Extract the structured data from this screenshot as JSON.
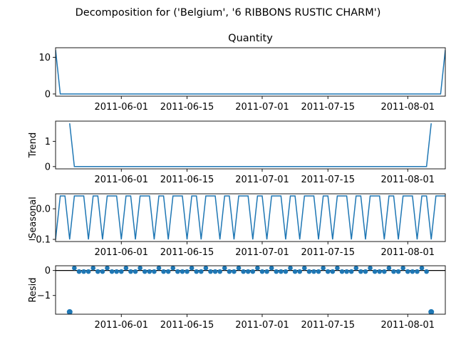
{
  "suptitle": "Decomposition for ('Belgium', '6 RIBBONS RUSTIC CHARM')",
  "colors": {
    "line": "#1f77b4",
    "axes": "#000000",
    "zero_line": "#000000",
    "background": "#ffffff"
  },
  "chart_data": [
    {
      "type": "line",
      "title": "Quantity",
      "ylabel": "",
      "series": [
        {
          "x": [
            "2011-05-18",
            "2011-05-19",
            "2011-08-08",
            "2011-08-09"
          ],
          "y": [
            12,
            0,
            0,
            12
          ]
        }
      ],
      "xlim": [
        "2011-05-18",
        "2011-08-09"
      ],
      "ylim": [
        -0.6,
        12.6
      ],
      "yticks": [
        0,
        10
      ],
      "ytick_labels": [
        "0",
        "10"
      ],
      "xticks": [
        "2011-06-01",
        "2011-06-15",
        "2011-07-01",
        "2011-07-15",
        "2011-08-01"
      ],
      "xtick_labels": [
        "2011-06-01",
        "2011-06-15",
        "2011-07-01",
        "2011-07-15",
        "2011-08-01"
      ],
      "grid": false
    },
    {
      "type": "line",
      "title": "",
      "ylabel": "Trend",
      "series": [
        {
          "x": [
            "2011-05-21",
            "2011-05-22",
            "2011-08-05",
            "2011-08-06"
          ],
          "y": [
            1.714,
            0,
            0,
            1.714
          ]
        }
      ],
      "xlim": [
        "2011-05-18",
        "2011-08-09"
      ],
      "ylim": [
        -0.09,
        1.8
      ],
      "yticks": [
        0,
        1
      ],
      "ytick_labels": [
        "0",
        "1"
      ],
      "xticks": [
        "2011-06-01",
        "2011-06-15",
        "2011-07-01",
        "2011-07-15",
        "2011-08-01"
      ],
      "xtick_labels": [
        "2011-06-01",
        "2011-06-15",
        "2011-07-01",
        "2011-07-15",
        "2011-08-01"
      ],
      "grid": false
    },
    {
      "type": "line",
      "title": "",
      "ylabel": "Seasonal",
      "period": 7,
      "pattern": [
        -0.1,
        0.042,
        0.042,
        -0.1,
        0.042,
        0.042,
        0.042
      ],
      "xlim": [
        "2011-05-18",
        "2011-08-09"
      ],
      "ylim": [
        -0.107,
        0.049
      ],
      "yticks": [
        -0.1,
        0.0
      ],
      "ytick_labels": [
        "−0.1",
        "0.0"
      ],
      "xticks": [
        "2011-06-01",
        "2011-06-15",
        "2011-07-01",
        "2011-07-15",
        "2011-08-01"
      ],
      "xtick_labels": [
        "2011-06-01",
        "2011-06-15",
        "2011-07-01",
        "2011-07-15",
        "2011-08-01"
      ],
      "grid": false
    },
    {
      "type": "scatter",
      "title": "",
      "ylabel": "Resid",
      "first_date": "2011-05-21",
      "last_date": "2011-08-06",
      "endpoint_value": -1.66,
      "regular_value": -0.042,
      "regular_pattern": [
        -0.042,
        0.1,
        -0.042,
        -0.042,
        -0.042,
        0.1,
        -0.042
      ],
      "zero_line": 0,
      "xlim": [
        "2011-05-18",
        "2011-08-09"
      ],
      "ylim": [
        -1.75,
        0.19
      ],
      "yticks": [
        -1,
        0
      ],
      "ytick_labels": [
        "−1",
        "0"
      ],
      "xticks": [
        "2011-06-01",
        "2011-06-15",
        "2011-07-01",
        "2011-07-15",
        "2011-08-01"
      ],
      "xtick_labels": [
        "2011-06-01",
        "2011-06-15",
        "2011-07-01",
        "2011-07-15",
        "2011-08-01"
      ],
      "grid": false
    }
  ]
}
